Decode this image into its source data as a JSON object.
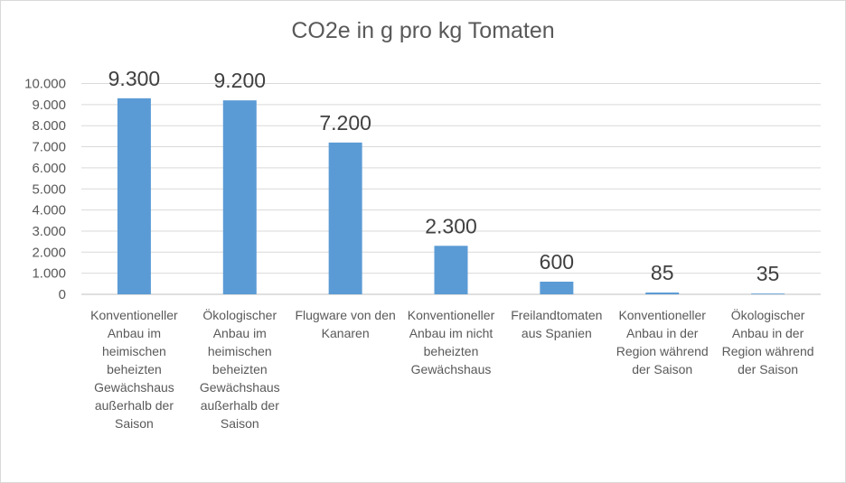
{
  "chart_data": {
    "type": "bar",
    "title": "CO2e in g pro kg Tomaten",
    "xlabel": "",
    "ylabel": "",
    "categories": [
      "Konventioneller Anbau im heimischen beheizten Gewächshaus außerhalb der Saison",
      "Ökologischer Anbau im heimischen beheizten Gewächshaus außerhalb der Saison",
      "Flugware von den Kanaren",
      "Konventioneller Anbau im nicht beheizten Gewächshaus",
      "Freilandtomaten aus Spanien",
      "Konventioneller Anbau in der Region während der Saison",
      "Ökologischer Anbau in der Region während der Saison"
    ],
    "values": [
      9300,
      9200,
      7200,
      2300,
      600,
      85,
      35
    ],
    "value_labels": [
      "9.300",
      "9.200",
      "7.200",
      "2.300",
      "600",
      "85",
      "35"
    ],
    "ylim": [
      0,
      10000
    ],
    "yticks": [
      0,
      1000,
      2000,
      3000,
      4000,
      5000,
      6000,
      7000,
      8000,
      9000,
      10000
    ],
    "ytick_labels": [
      "0",
      "1.000",
      "2.000",
      "3.000",
      "4.000",
      "5.000",
      "6.000",
      "7.000",
      "8.000",
      "9.000",
      "10.000"
    ],
    "grid": true,
    "legend": "none",
    "bar_color": "#5b9bd5",
    "grid_color": "#d9d9d9"
  }
}
